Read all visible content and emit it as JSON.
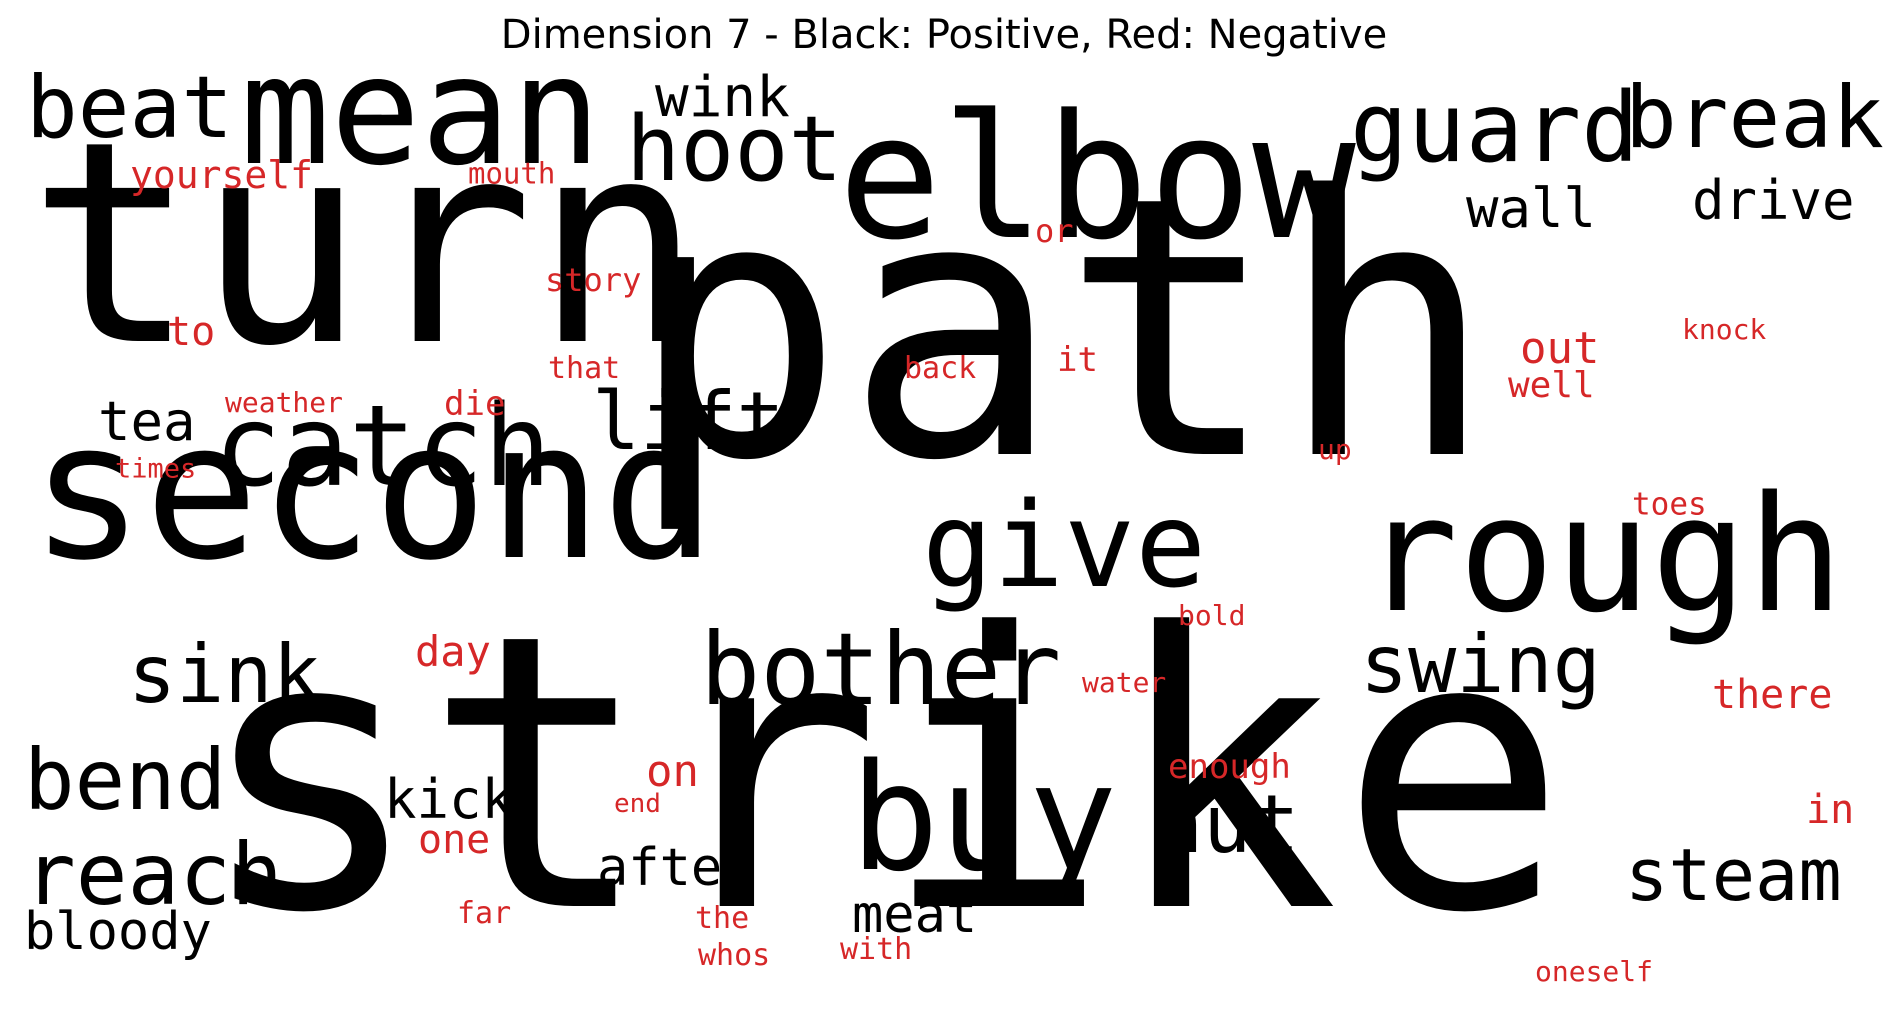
{
  "title": "Dimension 7 - Black: Positive, Red: Negative",
  "colors": {
    "positive": "#000000",
    "negative": "#d62728"
  },
  "words": {
    "strike": "strike",
    "path": "path",
    "turn": "turn",
    "second": "second",
    "elbow": "elbow",
    "mean": "mean",
    "rough": "rough",
    "buy": "buy",
    "catch": "catch",
    "give": "give",
    "bother": "bother",
    "guard": "guard",
    "break": "break",
    "hoot": "hoot",
    "beat": "beat",
    "reach": "reach",
    "bend": "bend",
    "sink": "sink",
    "swing": "swing",
    "steam": "steam",
    "nut": "nut",
    "lift": "lift",
    "wink": "wink",
    "wall": "wall",
    "drive": "drive",
    "tea": "tea",
    "kick": "kick",
    "after": "after",
    "meat": "meat",
    "bloody": "bloody",
    "yourself": "yourself",
    "mouth": "mouth",
    "or": "or",
    "story": "story",
    "to": "to",
    "that": "that",
    "back": "back",
    "it": "it",
    "knock": "knock",
    "out": "out",
    "well": "well",
    "weather": "weather",
    "die": "die",
    "times": "times",
    "up": "up",
    "toes": "toes",
    "bold": "bold",
    "day": "day",
    "water": "water",
    "there": "there",
    "enough": "enough",
    "on": "on",
    "end": "end",
    "one": "one",
    "in": "in",
    "far": "far",
    "the": "the",
    "whos": "whos",
    "with": "with",
    "oneself": "oneself"
  }
}
